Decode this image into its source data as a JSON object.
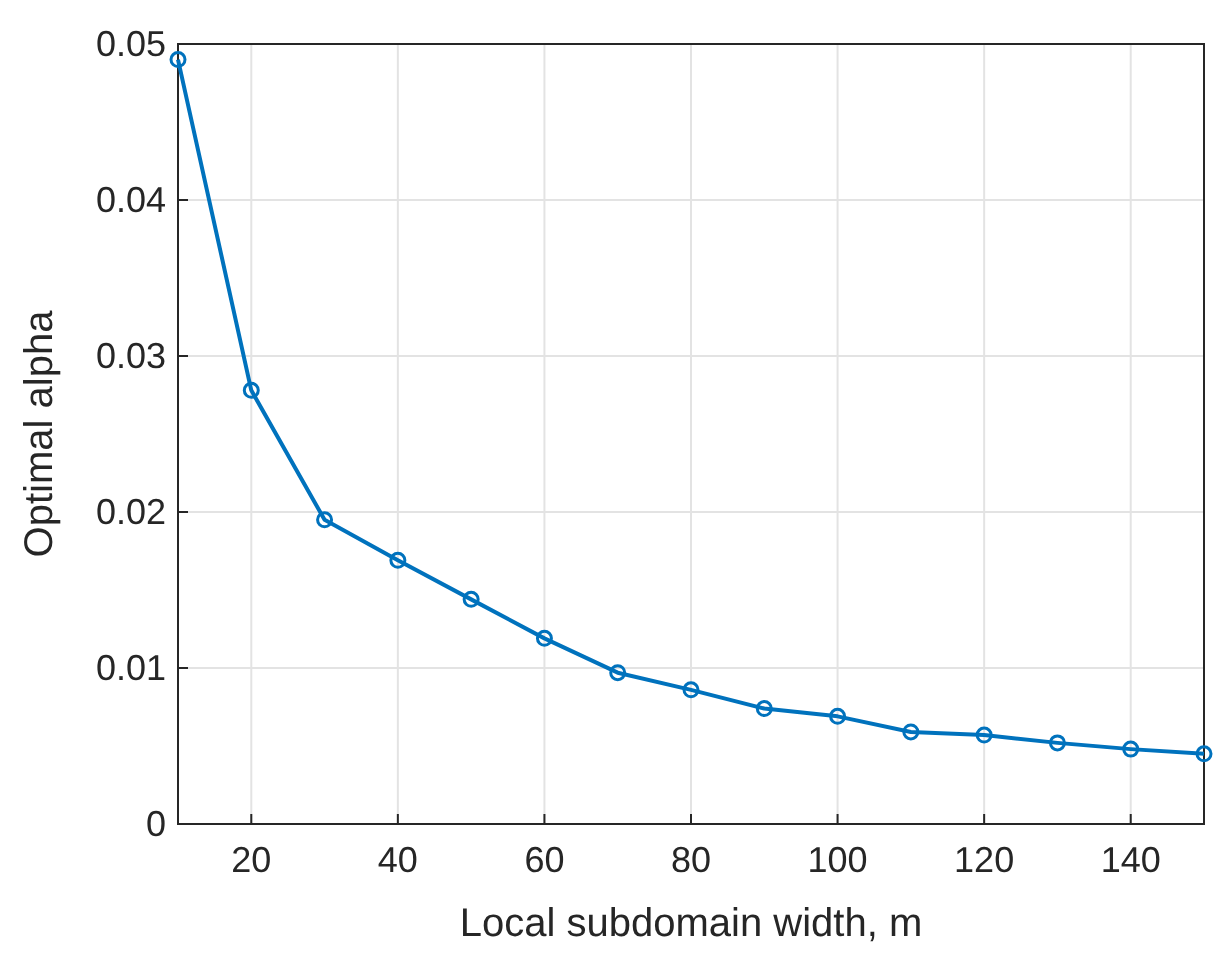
{
  "chart_data": {
    "type": "line",
    "xlabel": "Local subdomain width, m",
    "ylabel": "Optimal alpha",
    "x": [
      10,
      20,
      30,
      40,
      50,
      60,
      70,
      80,
      90,
      100,
      110,
      120,
      130,
      140,
      150
    ],
    "series": [
      {
        "color": "#0072bd",
        "values": [
          0.049,
          0.0278,
          0.0195,
          0.0169,
          0.0144,
          0.0119,
          0.0097,
          0.0086,
          0.0074,
          0.0069,
          0.0059,
          0.0057,
          0.0052,
          0.0048,
          0.0045
        ]
      }
    ],
    "xlim": [
      10,
      150
    ],
    "xticks": [
      20,
      40,
      60,
      80,
      100,
      120,
      140
    ],
    "ylim": [
      0,
      0.05
    ],
    "yticks": [
      0,
      0.01,
      0.02,
      0.03,
      0.04,
      0.05
    ],
    "grid": true,
    "marker": "circle",
    "line_style": "solid"
  }
}
